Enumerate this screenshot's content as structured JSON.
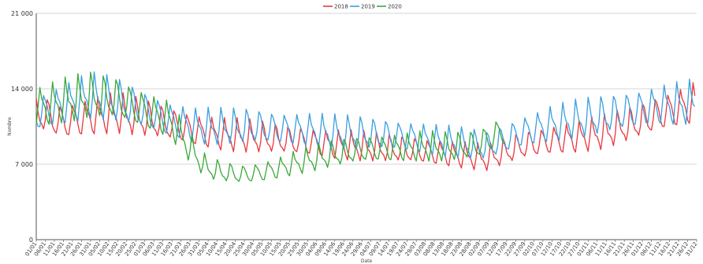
{
  "chart_data": {
    "type": "line",
    "title": "",
    "xlabel": "Date",
    "ylabel": "Nombre",
    "ylim": [
      0,
      21000
    ],
    "y_ticks": [
      0,
      7000,
      14000,
      21000
    ],
    "y_tick_labels": [
      "0",
      "7 000",
      "14 000",
      "21 000"
    ],
    "grid": "horizontal",
    "legend_position": "top-center",
    "x_range_days": [
      1,
      366
    ],
    "x_tick_labels": [
      "01/01",
      "06/01",
      "11/01",
      "16/01",
      "21/01",
      "26/01",
      "31/01",
      "05/02",
      "10/02",
      "15/02",
      "20/02",
      "25/02",
      "01/03",
      "06/03",
      "11/03",
      "16/03",
      "21/03",
      "26/03",
      "31/03",
      "05/04",
      "10/04",
      "15/04",
      "20/04",
      "25/04",
      "30/04",
      "05/05",
      "10/05",
      "15/05",
      "20/05",
      "25/05",
      "30/05",
      "04/06",
      "09/06",
      "14/06",
      "19/06",
      "24/06",
      "29/06",
      "04/07",
      "09/07",
      "14/07",
      "19/07",
      "24/07",
      "29/07",
      "03/08",
      "08/08",
      "13/08",
      "18/08",
      "23/08",
      "28/08",
      "02/09",
      "07/09",
      "12/09",
      "17/09",
      "22/09",
      "27/09",
      "02/10",
      "07/10",
      "12/10",
      "17/10",
      "22/10",
      "27/10",
      "01/11",
      "06/11",
      "11/11",
      "16/11",
      "21/11",
      "26/11",
      "01/12",
      "06/12",
      "11/12",
      "16/12",
      "21/12",
      "26/12",
      "31/12"
    ],
    "series": [
      {
        "name": "2018",
        "color": "#e8383d",
        "day": [
          1,
          15,
          31,
          45,
          60,
          75,
          90,
          105,
          120,
          135,
          150,
          165,
          180,
          195,
          210,
          225,
          240,
          250,
          260,
          270,
          285,
          300,
          315,
          330,
          345,
          365
        ],
        "values": [
          12000,
          11000,
          11500,
          11800,
          11300,
          10800,
          10200,
          9800,
          9600,
          9400,
          9200,
          8900,
          8700,
          8500,
          8400,
          8100,
          7800,
          7600,
          8200,
          8800,
          9300,
          9600,
          10000,
          10800,
          11800,
          12800
        ]
      },
      {
        "name": "2019",
        "color": "#3a9fe0",
        "day": [
          1,
          15,
          31,
          45,
          60,
          75,
          90,
          105,
          120,
          135,
          150,
          165,
          180,
          195,
          210,
          225,
          240,
          250,
          260,
          270,
          285,
          300,
          315,
          330,
          345,
          365
        ],
        "values": [
          11800,
          12600,
          13400,
          13000,
          12100,
          11200,
          10600,
          10500,
          10600,
          10400,
          10300,
          10000,
          9900,
          9800,
          9600,
          9200,
          8900,
          8700,
          9400,
          10100,
          10800,
          11200,
          11600,
          12100,
          12600,
          12800
        ]
      },
      {
        "name": "2020",
        "color": "#3aa83a",
        "day": [
          1,
          15,
          31,
          45,
          60,
          75,
          85,
          95,
          105,
          115,
          125,
          135,
          145,
          160,
          175,
          185,
          200,
          215,
          230,
          245,
          260
        ],
        "values": [
          12400,
          12900,
          13400,
          13200,
          12200,
          11200,
          8800,
          6700,
          6300,
          6100,
          6300,
          6700,
          7200,
          7800,
          8300,
          8500,
          8600,
          8700,
          8600,
          8900,
          10300
        ]
      }
    ]
  }
}
